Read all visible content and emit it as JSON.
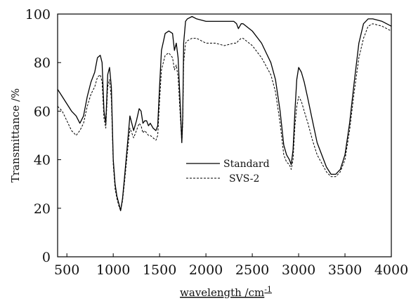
{
  "chart_data": {
    "type": "line",
    "title": "",
    "xlabel": "wavelength /cm",
    "xlabel_superscript": "-1",
    "ylabel": "Transmittance /%",
    "xlim": [
      400,
      4000
    ],
    "ylim": [
      0,
      100
    ],
    "xticks": [
      500,
      1000,
      1500,
      2000,
      2500,
      3000,
      3500,
      4000
    ],
    "yticks": [
      0,
      20,
      40,
      60,
      80,
      100
    ],
    "grid": false,
    "legend_position": "center",
    "series": [
      {
        "name": "Standard",
        "style": "solid",
        "color": "#000000",
        "x": [
          400,
          450,
          500,
          550,
          600,
          640,
          680,
          720,
          760,
          800,
          830,
          860,
          880,
          900,
          920,
          940,
          960,
          980,
          1000,
          1020,
          1040,
          1060,
          1080,
          1100,
          1120,
          1150,
          1180,
          1200,
          1220,
          1250,
          1280,
          1300,
          1320,
          1340,
          1360,
          1380,
          1400,
          1430,
          1460,
          1480,
          1500,
          1520,
          1560,
          1600,
          1640,
          1660,
          1680,
          1700,
          1720,
          1740,
          1750,
          1760,
          1780,
          1800,
          1850,
          1900,
          2000,
          2100,
          2200,
          2300,
          2330,
          2350,
          2380,
          2400,
          2500,
          2600,
          2700,
          2750,
          2800,
          2840,
          2870,
          2900,
          2920,
          2940,
          2960,
          2980,
          3000,
          3030,
          3060,
          3100,
          3150,
          3200,
          3300,
          3350,
          3400,
          3450,
          3500,
          3550,
          3600,
          3650,
          3700,
          3750,
          3800,
          3900,
          4000
        ],
        "y": [
          69,
          66,
          63,
          60,
          58,
          55,
          58,
          66,
          72,
          76,
          82,
          83,
          80,
          60,
          55,
          75,
          78,
          70,
          40,
          30,
          25,
          22,
          19,
          24,
          32,
          45,
          58,
          55,
          52,
          56,
          61,
          60,
          55,
          56,
          56,
          54,
          55,
          53,
          52,
          54,
          70,
          85,
          92,
          93,
          92,
          85,
          88,
          82,
          65,
          47,
          58,
          88,
          97,
          98,
          99,
          98,
          97,
          97,
          97,
          97,
          96,
          94,
          96,
          96,
          93,
          88,
          80,
          73,
          60,
          46,
          42,
          40,
          38,
          44,
          60,
          73,
          78,
          76,
          72,
          65,
          56,
          47,
          37,
          34,
          34,
          36,
          42,
          55,
          72,
          88,
          96,
          98,
          98,
          97,
          95
        ]
      },
      {
        "name": "SVS-2",
        "style": "dashed",
        "color": "#000000",
        "x": [
          400,
          450,
          500,
          550,
          600,
          640,
          680,
          720,
          760,
          800,
          830,
          860,
          880,
          900,
          920,
          940,
          960,
          980,
          1000,
          1020,
          1040,
          1060,
          1080,
          1100,
          1120,
          1150,
          1180,
          1200,
          1220,
          1250,
          1280,
          1300,
          1320,
          1340,
          1360,
          1380,
          1400,
          1430,
          1460,
          1480,
          1500,
          1520,
          1560,
          1600,
          1640,
          1660,
          1680,
          1700,
          1720,
          1740,
          1750,
          1760,
          1780,
          1800,
          1850,
          1900,
          2000,
          2100,
          2200,
          2300,
          2330,
          2350,
          2380,
          2400,
          2500,
          2600,
          2700,
          2750,
          2800,
          2840,
          2870,
          2900,
          2920,
          2940,
          2960,
          2980,
          3000,
          3030,
          3060,
          3100,
          3150,
          3200,
          3300,
          3350,
          3400,
          3450,
          3500,
          3550,
          3600,
          3650,
          3700,
          3750,
          3800,
          3900,
          4000
        ],
        "y": [
          62,
          60,
          56,
          52,
          50,
          52,
          55,
          62,
          67,
          70,
          74,
          75,
          72,
          57,
          53,
          70,
          73,
          65,
          38,
          28,
          24,
          21,
          19,
          23,
          30,
          42,
          53,
          51,
          49,
          52,
          55,
          54,
          51,
          52,
          51,
          50,
          50,
          49,
          48,
          50,
          64,
          77,
          83,
          84,
          82,
          77,
          79,
          74,
          60,
          47,
          55,
          80,
          88,
          89,
          90,
          90,
          88,
          88,
          87,
          88,
          88,
          89,
          90,
          90,
          87,
          82,
          75,
          68,
          55,
          42,
          39,
          38,
          36,
          40,
          54,
          62,
          66,
          64,
          60,
          55,
          48,
          42,
          35,
          33,
          33,
          35,
          40,
          52,
          68,
          82,
          90,
          95,
          96,
          95,
          93
        ]
      }
    ]
  }
}
